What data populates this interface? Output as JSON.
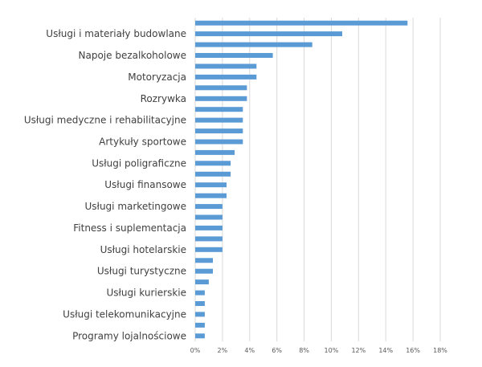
{
  "chart_data": {
    "type": "bar",
    "orientation": "horizontal",
    "categories": [
      "",
      "Usługi i materiały budowlane",
      "",
      "Napoje bezalkoholowe",
      "",
      "Motoryzacja",
      "",
      "Rozrywka",
      "",
      "Usługi medyczne i rehabilitacyjne",
      "",
      "Artykuły sportowe",
      "",
      "Usługi poligraficzne",
      "",
      "Usługi finansowe",
      "",
      "Usługi marketingowe",
      "",
      "Fitness i suplementacja",
      "",
      "Usługi hotelarskie ",
      "",
      "Usługi turystyczne",
      "",
      "Usługi kurierskie",
      "",
      "Usługi telekomunikacyjne",
      "",
      "Programy lojalnościowe"
    ],
    "values": [
      15.6,
      10.8,
      8.6,
      5.7,
      4.5,
      4.5,
      3.8,
      3.8,
      3.5,
      3.5,
      3.5,
      3.5,
      2.9,
      2.6,
      2.6,
      2.3,
      2.3,
      2.0,
      2.0,
      2.0,
      2.0,
      2.0,
      1.3,
      1.3,
      1.0,
      0.7,
      0.7,
      0.7,
      0.7,
      0.7
    ],
    "xlim": [
      0,
      18
    ],
    "x_ticks": [
      "0%",
      "2%",
      "4%",
      "6%",
      "8%",
      "10%",
      "12%",
      "14%",
      "16%",
      "18%"
    ],
    "grid": true,
    "colors": {
      "bar": "#5b9bd5",
      "grid": "#d9d9d9"
    }
  }
}
